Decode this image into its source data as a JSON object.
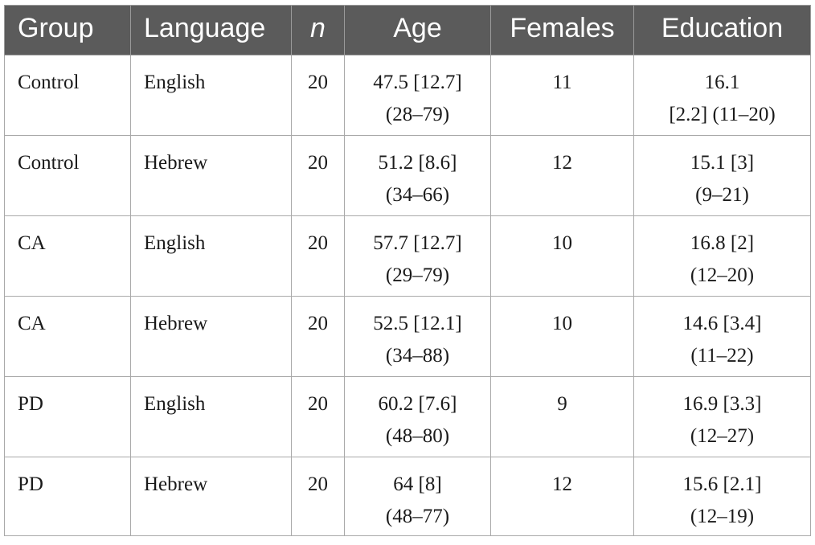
{
  "table": {
    "headers": {
      "group": "Group",
      "language": "Language",
      "n": "n",
      "age": "Age",
      "females": "Females",
      "education": "Education"
    },
    "rows": [
      {
        "group": "Control",
        "language": "English",
        "n": "20",
        "age": [
          "47.5 [12.7]",
          "(28–79)"
        ],
        "females": "11",
        "education": [
          "16.1",
          "[2.2] (11–20)"
        ]
      },
      {
        "group": "Control",
        "language": "Hebrew",
        "n": "20",
        "age": [
          "51.2 [8.6]",
          "(34–66)"
        ],
        "females": "12",
        "education": [
          "15.1 [3]",
          "(9–21)"
        ]
      },
      {
        "group": "CA",
        "language": "English",
        "n": "20",
        "age": [
          "57.7 [12.7]",
          "(29–79)"
        ],
        "females": "10",
        "education": [
          "16.8 [2]",
          "(12–20)"
        ]
      },
      {
        "group": "CA",
        "language": "Hebrew",
        "n": "20",
        "age": [
          "52.5 [12.1]",
          "(34–88)"
        ],
        "females": "10",
        "education": [
          "14.6 [3.4]",
          "(11–22)"
        ]
      },
      {
        "group": "PD",
        "language": "English",
        "n": "20",
        "age": [
          "60.2 [7.6]",
          "(48–80)"
        ],
        "females": "9",
        "education": [
          "16.9 [3.3]",
          "(12–27)"
        ]
      },
      {
        "group": "PD",
        "language": "Hebrew",
        "n": "20",
        "age": [
          "64 [8]",
          "(48–77)"
        ],
        "females": "12",
        "education": [
          "15.6 [2.1]",
          "(12–19)"
        ]
      }
    ]
  }
}
